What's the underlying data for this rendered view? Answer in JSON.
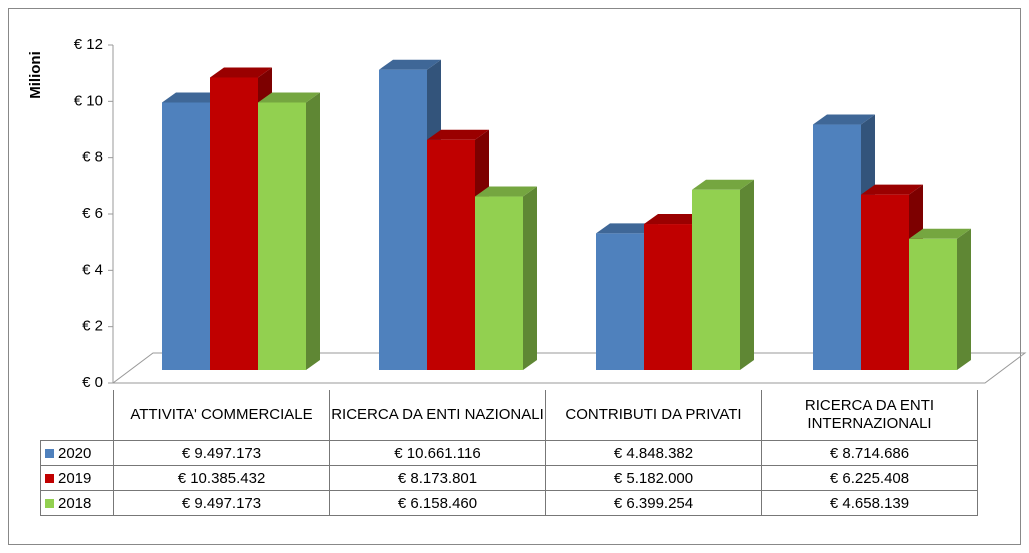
{
  "chart_data": {
    "type": "bar3d",
    "y_label": "Milioni",
    "categories": [
      "ATTIVITA' COMMERCIALE",
      "RICERCA DA ENTI NAZIONALI",
      "CONTRIBUTI DA PRIVATI",
      "RICERCA DA ENTI INTERNAZIONALI"
    ],
    "series": [
      {
        "name": "2020",
        "color": "#4f81bd",
        "values": [
          9.497173,
          10.661116,
          4.848382,
          8.714686
        ],
        "value_labels": [
          "€ 9.497.173",
          "€ 10.661.116",
          "€ 4.848.382",
          "€ 8.714.686"
        ]
      },
      {
        "name": "2019",
        "color": "#c00000",
        "values": [
          10.385432,
          8.173801,
          5.182,
          6.225408
        ],
        "value_labels": [
          "€ 10.385.432",
          "€ 8.173.801",
          "€ 5.182.000",
          "€ 6.225.408"
        ]
      },
      {
        "name": "2018",
        "color": "#92d050",
        "values": [
          9.497173,
          6.15846,
          6.399254,
          4.658139
        ],
        "value_labels": [
          "€ 9.497.173",
          "€ 6.158.460",
          "€ 6.399.254",
          "€ 4.658.139"
        ]
      }
    ],
    "ylim": [
      0,
      12
    ],
    "yticks": [
      {
        "value": 0,
        "label": "€ 0"
      },
      {
        "value": 2,
        "label": "€ 2"
      },
      {
        "value": 4,
        "label": "€ 4"
      },
      {
        "value": 6,
        "label": "€ 6"
      },
      {
        "value": 8,
        "label": "€ 8"
      },
      {
        "value": 10,
        "label": "€ 10"
      },
      {
        "value": 12,
        "label": "€ 12"
      }
    ]
  }
}
